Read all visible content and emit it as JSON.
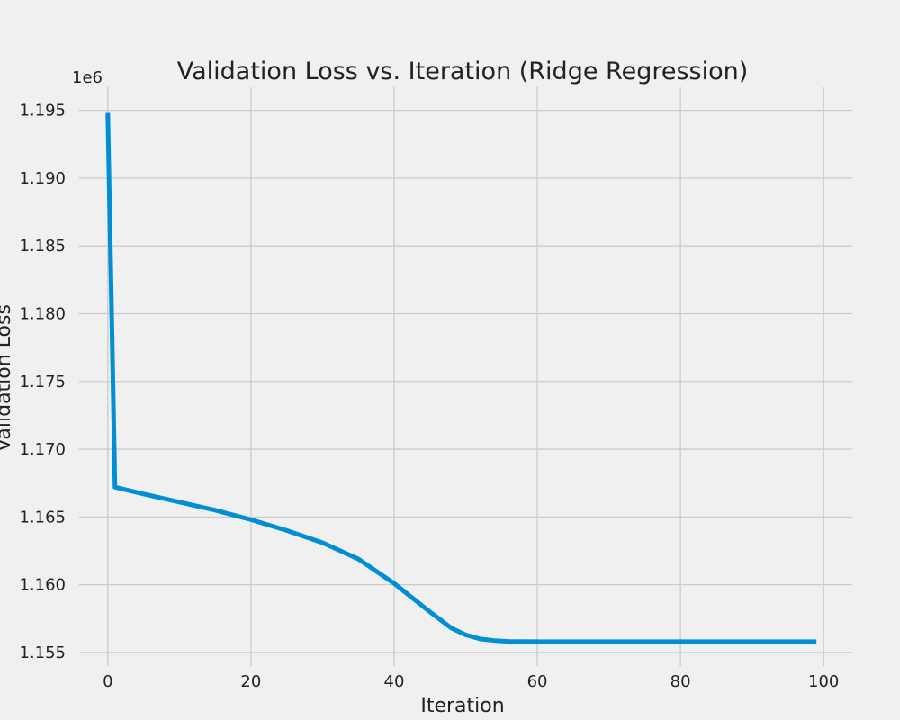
{
  "chart_data": {
    "type": "line",
    "title": "Validation Loss vs. Iteration (Ridge Regression)",
    "xlabel": "Iteration",
    "ylabel": "Validation Loss",
    "y_offset_label": "1e6",
    "xlim": [
      -4,
      104
    ],
    "ylim": [
      1.154,
      1.1967
    ],
    "x_ticks": [
      0,
      20,
      40,
      60,
      80,
      100
    ],
    "x_tick_labels": [
      "0",
      "20",
      "40",
      "60",
      "80",
      "100"
    ],
    "y_ticks": [
      1.155,
      1.16,
      1.165,
      1.17,
      1.175,
      1.18,
      1.185,
      1.19,
      1.195
    ],
    "y_tick_labels": [
      "1.155",
      "1.160",
      "1.165",
      "1.170",
      "1.175",
      "1.180",
      "1.185",
      "1.190",
      "1.195"
    ],
    "grid": true,
    "line_color": "#008fd5",
    "series": [
      {
        "x": [
          0,
          1,
          5,
          10,
          15,
          20,
          25,
          30,
          35,
          40,
          45,
          48,
          50,
          52,
          54,
          56,
          58,
          60,
          70,
          80,
          90,
          99
        ],
        "y": [
          1.1948,
          1.1672,
          1.1667,
          1.1661,
          1.1655,
          1.1648,
          1.164,
          1.1631,
          1.1619,
          1.1601,
          1.158,
          1.1568,
          1.1563,
          1.156,
          1.15588,
          1.15582,
          1.15581,
          1.1558,
          1.1558,
          1.1558,
          1.1558,
          1.1558
        ]
      }
    ]
  }
}
